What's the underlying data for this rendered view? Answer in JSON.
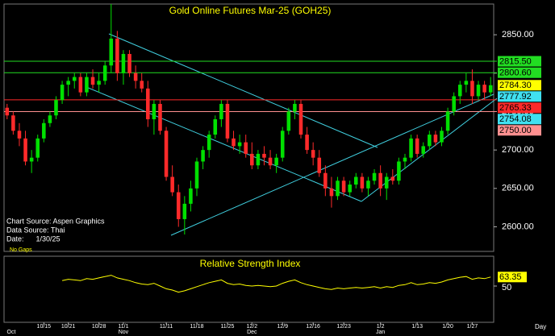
{
  "chart_data": {
    "type": "candlestick",
    "title": "Gold Online Futures Mar-25 (GOH25)",
    "source_lines": [
      "Chart Source: Aspen Graphics",
      "Data Source: Thai",
      "Date:      1/30/25"
    ],
    "gap_note": "No Gaps",
    "x_axis_label": "Day",
    "categories": [
      null,
      null,
      null,
      null,
      null,
      null,
      "10/15",
      null,
      null,
      null,
      "10/21",
      null,
      null,
      null,
      null,
      "10/28",
      null,
      null,
      null,
      "11/1",
      null,
      null,
      null,
      null,
      null,
      null,
      "11/11",
      null,
      null,
      null,
      null,
      "11/18",
      null,
      null,
      null,
      null,
      "11/25",
      null,
      null,
      null,
      "12/2",
      null,
      null,
      null,
      null,
      "12/9",
      null,
      null,
      null,
      null,
      "12/16",
      null,
      null,
      null,
      null,
      "12/23",
      null,
      null,
      null,
      null,
      null,
      "1/2",
      null,
      null,
      null,
      null,
      null,
      "1/13",
      null,
      null,
      null,
      null,
      "1/20",
      null,
      null,
      null,
      "1/27",
      null,
      null,
      null
    ],
    "month_categories": [
      "Oct",
      null,
      null,
      null,
      null,
      null,
      null,
      null,
      null,
      null,
      null,
      null,
      null,
      null,
      null,
      null,
      null,
      null,
      null,
      "Nov",
      null,
      null,
      null,
      null,
      null,
      null,
      null,
      null,
      null,
      null,
      null,
      null,
      null,
      null,
      null,
      null,
      null,
      null,
      null,
      null,
      "Dec",
      null,
      null,
      null,
      null,
      null,
      null,
      null,
      null,
      null,
      null,
      null,
      null,
      null,
      null,
      null,
      null,
      null,
      null,
      null,
      null,
      "Jan",
      null,
      null,
      null,
      null,
      null,
      null,
      null,
      null,
      null,
      null,
      null,
      null,
      null,
      null,
      null,
      null,
      null,
      null
    ],
    "open": [
      2755,
      2745,
      2725,
      2715,
      2685,
      2690,
      2715,
      2735,
      2745,
      2765,
      2785,
      2790,
      2795,
      2775,
      2795,
      2785,
      2790,
      2810,
      2845,
      2800,
      2825,
      2800,
      2790,
      2780,
      2740,
      2760,
      2725,
      2665,
      2645,
      2610,
      2630,
      2650,
      2685,
      2700,
      2720,
      2740,
      2760,
      2715,
      2705,
      2710,
      2695,
      2680,
      2695,
      2690,
      2680,
      2690,
      2725,
      2750,
      2760,
      2720,
      2700,
      2690,
      2670,
      2650,
      2640,
      2660,
      2645,
      2655,
      2665,
      2650,
      2660,
      2670,
      2650,
      2665,
      2660,
      2685,
      2690,
      2715,
      2695,
      2705,
      2720,
      2710,
      2725,
      2750,
      2770,
      2785,
      2790,
      2770,
      2785,
      2775
    ],
    "high": [
      2760,
      2750,
      2735,
      2725,
      2700,
      2720,
      2740,
      2750,
      2770,
      2790,
      2795,
      2800,
      2800,
      2800,
      2805,
      2800,
      2815,
      2890,
      2855,
      2830,
      2830,
      2810,
      2800,
      2790,
      2765,
      2765,
      2730,
      2680,
      2655,
      2640,
      2660,
      2690,
      2705,
      2725,
      2745,
      2765,
      2765,
      2725,
      2720,
      2720,
      2710,
      2700,
      2705,
      2700,
      2695,
      2730,
      2755,
      2765,
      2765,
      2730,
      2710,
      2700,
      2680,
      2665,
      2665,
      2665,
      2660,
      2670,
      2670,
      2665,
      2675,
      2680,
      2670,
      2675,
      2690,
      2695,
      2720,
      2720,
      2710,
      2725,
      2725,
      2730,
      2755,
      2775,
      2790,
      2800,
      2805,
      2790,
      2790,
      2795
    ],
    "low": [
      2740,
      2720,
      2705,
      2680,
      2670,
      2685,
      2710,
      2730,
      2740,
      2760,
      2770,
      2780,
      2770,
      2770,
      2780,
      2775,
      2785,
      2800,
      2790,
      2785,
      2795,
      2780,
      2775,
      2730,
      2720,
      2720,
      2660,
      2640,
      2600,
      2590,
      2620,
      2640,
      2675,
      2690,
      2715,
      2730,
      2710,
      2700,
      2695,
      2690,
      2675,
      2675,
      2680,
      2675,
      2670,
      2685,
      2720,
      2740,
      2715,
      2695,
      2680,
      2665,
      2640,
      2625,
      2635,
      2640,
      2640,
      2650,
      2645,
      2640,
      2655,
      2640,
      2635,
      2655,
      2655,
      2675,
      2685,
      2690,
      2690,
      2700,
      2705,
      2705,
      2720,
      2745,
      2760,
      2775,
      2760,
      2765,
      2765,
      2770
    ],
    "close": [
      2745,
      2725,
      2715,
      2685,
      2690,
      2715,
      2735,
      2745,
      2765,
      2785,
      2790,
      2795,
      2775,
      2795,
      2785,
      2790,
      2810,
      2845,
      2800,
      2825,
      2800,
      2790,
      2780,
      2740,
      2760,
      2725,
      2665,
      2645,
      2610,
      2630,
      2650,
      2685,
      2700,
      2720,
      2740,
      2760,
      2715,
      2705,
      2710,
      2695,
      2680,
      2695,
      2690,
      2680,
      2690,
      2725,
      2750,
      2760,
      2720,
      2700,
      2690,
      2670,
      2650,
      2640,
      2660,
      2645,
      2655,
      2665,
      2650,
      2660,
      2670,
      2650,
      2665,
      2660,
      2685,
      2690,
      2715,
      2695,
      2705,
      2720,
      2710,
      2725,
      2750,
      2770,
      2785,
      2790,
      2770,
      2785,
      2775,
      2784.3
    ],
    "up_color": "#00e000",
    "down_color": "#ff2a2a",
    "ylim": [
      2568,
      2890
    ],
    "yticks": [
      {
        "value": 2600,
        "label": "2600.00"
      },
      {
        "value": 2650,
        "label": "2650.00"
      },
      {
        "value": 2700,
        "label": "2700.00"
      },
      {
        "value": 2750,
        "label": "2750.00"
      },
      {
        "value": 2800,
        "label": "2800.00"
      },
      {
        "value": 2850,
        "label": "2850.00"
      }
    ],
    "levels": [
      {
        "value": 2815.5,
        "label": "2815.50",
        "color": "#22dd22",
        "line": true
      },
      {
        "value": 2800.6,
        "label": "2800.60",
        "color": "#22dd22",
        "line": true
      },
      {
        "value": 2784.3,
        "label": "2784.30",
        "color": "#ffff00",
        "line": false
      },
      {
        "value": 2777.92,
        "label": "2777.92",
        "color": "#40e0f0",
        "line": false
      },
      {
        "value": 2765.33,
        "label": "2765.33",
        "color": "#ff2a2a",
        "line": true
      },
      {
        "value": 2754.08,
        "label": "2754.08",
        "color": "#40e0f0",
        "line": false
      },
      {
        "value": 2750,
        "label": "2750.00",
        "color": "#ff9090",
        "line": true
      }
    ],
    "rsi": {
      "title": "Relative Strength Index",
      "color": "#ffff00",
      "ylim": [
        0,
        100
      ],
      "yticks": [
        50
      ],
      "values": [
        null,
        null,
        null,
        null,
        null,
        null,
        null,
        null,
        null,
        58,
        60,
        59,
        58,
        61,
        60,
        62,
        64,
        66,
        62,
        60,
        58,
        55,
        53,
        52,
        54,
        50,
        46,
        44,
        41,
        43,
        46,
        49,
        52,
        55,
        57,
        59,
        54,
        52,
        53,
        51,
        50,
        51,
        50,
        49,
        50,
        54,
        57,
        59,
        55,
        52,
        50,
        48,
        46,
        45,
        47,
        46,
        47,
        48,
        47,
        48,
        49,
        47,
        49,
        48,
        51,
        52,
        55,
        52,
        53,
        55,
        54,
        56,
        59,
        61,
        63,
        64,
        60,
        62,
        61,
        63.35
      ]
    }
  }
}
